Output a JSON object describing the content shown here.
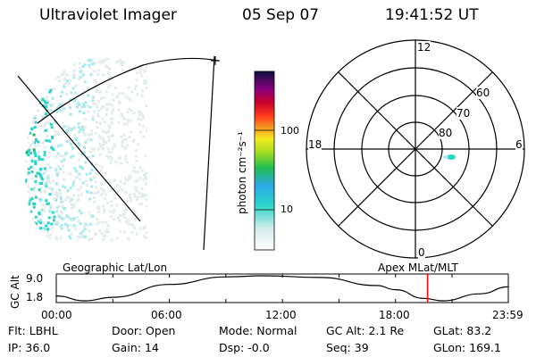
{
  "header": {
    "instrument": "Ultraviolet Imager",
    "date": "05 Sep 07",
    "time": "19:41:52 UT"
  },
  "colorbar": {
    "unit_label": "photon cm⁻²s⁻¹",
    "ticks": [
      "100",
      "10"
    ]
  },
  "polar_plot": {
    "mlt_labels": {
      "top": "12",
      "left": "18",
      "right": "6",
      "bottom": "0"
    },
    "lat_labels": [
      "60",
      "70",
      "80"
    ]
  },
  "timeline": {
    "left_label": "Geographic Lat/Lon",
    "right_label": "Apex MLat/MLT",
    "y_axis_label": "GC Alt",
    "y_ticks": [
      "9.0",
      "1.8"
    ],
    "x_ticks": [
      "00:00",
      "06:00",
      "12:00",
      "18:00",
      "23:59"
    ],
    "current_time_marker_color": "#ff0000"
  },
  "chart_data": {
    "type": "line",
    "title": "",
    "xlabel": "",
    "ylabel": "GC Alt",
    "ylim": [
      1.8,
      9.0
    ],
    "x": [
      "00:00",
      "01:30",
      "03:00",
      "06:00",
      "09:00",
      "11:00",
      "14:00",
      "17:00",
      "18:00",
      "19:30",
      "20:30",
      "22:30",
      "23:59"
    ],
    "series": [
      {
        "values": [
          3.2,
          1.8,
          2.8,
          6.5,
          8.7,
          9.0,
          8.5,
          6.2,
          5.0,
          2.5,
          1.8,
          3.8,
          5.8
        ]
      }
    ],
    "markers": [
      {
        "x": "19:41:52",
        "color": "#ff0000"
      }
    ]
  },
  "status": {
    "flt_label": "Flt:",
    "flt_value": "LBHL",
    "ip_label": "IP:",
    "ip_value": "36.0",
    "door_label": "Door:",
    "door_value": "Open",
    "gain_label": "Gain:",
    "gain_value": "14",
    "mode_label": "Mode:",
    "mode_value": "Normal",
    "dsp_label": "Dsp:",
    "dsp_value": "-0.0",
    "gcalt_label": "GC Alt:",
    "gcalt_value": "2.1 Re",
    "seq_label": "Seq:",
    "seq_value": "39",
    "glat_label": "GLat:",
    "glat_value": "83.2",
    "glon_label": "GLon:",
    "glon_value": "169.1"
  },
  "colors": {
    "aurora_bright": "#29d3c8",
    "aurora_mid": "#a8e9ec",
    "aurora_faint": "#e4eceb",
    "aurora_green": "#2bb05a",
    "marker_red": "#ff0000"
  }
}
